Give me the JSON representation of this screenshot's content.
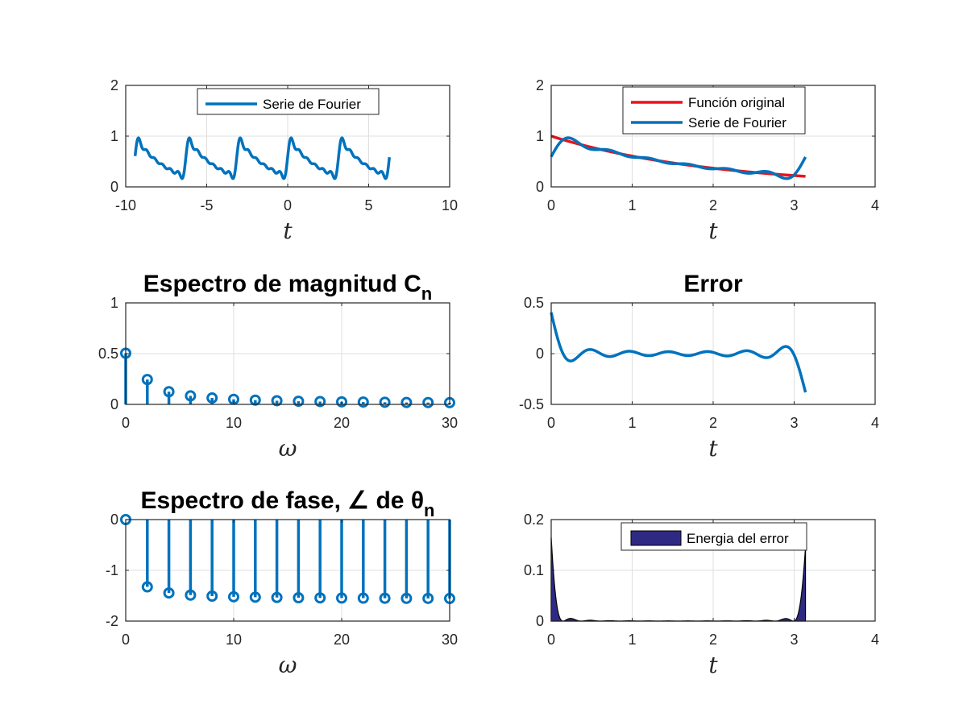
{
  "colors": {
    "blue": "#0072BD",
    "red": "#E8141C",
    "navy": "#2E2A84",
    "axis": "#262626",
    "grid": "#DFDFDF"
  },
  "chart_data": [
    {
      "id": "ax1",
      "type": "line",
      "title": "",
      "xlabel": "t",
      "ylabel": "",
      "xlim": [
        -10,
        10
      ],
      "ylim": [
        0,
        2
      ],
      "xticks": [
        -10,
        -5,
        0,
        5,
        10
      ],
      "xtick_labels": [
        "-10",
        "-5",
        "0",
        "5",
        "10"
      ],
      "yticks": [
        0,
        1,
        2
      ],
      "ytick_labels": [
        "0",
        "1",
        "2"
      ],
      "grid": true,
      "legend_position": "top-center",
      "series": [
        {
          "name": "Serie de Fourier",
          "color": "#0072BD",
          "function": "periodic exp(-t/2) on [0, pi), 6 harmonics",
          "x_range": [
            -9.42,
            6.28
          ]
        }
      ]
    },
    {
      "id": "ax2",
      "type": "line",
      "title": "",
      "xlabel": "t",
      "ylabel": "",
      "xlim": [
        0,
        4
      ],
      "ylim": [
        0,
        2
      ],
      "xticks": [
        0,
        1,
        2,
        3,
        4
      ],
      "xtick_labels": [
        "0",
        "1",
        "2",
        "3",
        "4"
      ],
      "yticks": [
        0,
        1,
        2
      ],
      "ytick_labels": [
        "0",
        "1",
        "2"
      ],
      "grid": true,
      "legend_position": "top-center",
      "series": [
        {
          "name": "Función original",
          "color": "#E8141C",
          "function": "exp(-t/2)",
          "x_range": [
            0,
            3.14
          ]
        },
        {
          "name": "Serie de Fourier",
          "color": "#0072BD",
          "function": "6-harmonic approximation",
          "x_range": [
            0,
            3.14
          ]
        }
      ]
    },
    {
      "id": "ax3",
      "type": "stem",
      "title": "Espectro de magnitud C",
      "title_sub": "n",
      "xlabel": "ω",
      "ylabel": "",
      "xlim": [
        0,
        30
      ],
      "ylim": [
        0,
        1
      ],
      "xticks": [
        0,
        10,
        20,
        30
      ],
      "xtick_labels": [
        "0",
        "10",
        "20",
        "30"
      ],
      "yticks": [
        0,
        0.5,
        1
      ],
      "ytick_labels": [
        "0",
        "0.5",
        "1"
      ],
      "grid": true,
      "x": [
        0,
        2,
        4,
        6,
        8,
        10,
        12,
        14,
        16,
        18,
        20,
        22,
        24,
        26,
        28,
        30
      ],
      "values": [
        0.504,
        0.245,
        0.125,
        0.084,
        0.063,
        0.05,
        0.042,
        0.036,
        0.031,
        0.028,
        0.025,
        0.023,
        0.021,
        0.019,
        0.018,
        0.017
      ]
    },
    {
      "id": "ax4",
      "type": "line",
      "title": "Error",
      "xlabel": "t",
      "ylabel": "",
      "xlim": [
        0,
        4
      ],
      "ylim": [
        -0.5,
        0.5
      ],
      "xticks": [
        0,
        1,
        2,
        3,
        4
      ],
      "xtick_labels": [
        "0",
        "1",
        "2",
        "3",
        "4"
      ],
      "yticks": [
        -0.5,
        0,
        0.5
      ],
      "ytick_labels": [
        "-0.5",
        "0",
        "0.5"
      ],
      "grid": true,
      "series": [
        {
          "color": "#0072BD",
          "function": "exp(-t/2) - series",
          "x_range": [
            0,
            3.14
          ]
        }
      ]
    },
    {
      "id": "ax5",
      "type": "stem",
      "title": "Espectro de fase, ∠ de θ",
      "title_sub": "n",
      "xlabel": "ω",
      "ylabel": "",
      "xlim": [
        0,
        30
      ],
      "ylim": [
        -2,
        0
      ],
      "xticks": [
        0,
        10,
        20,
        30
      ],
      "xtick_labels": [
        "0",
        "10",
        "20",
        "30"
      ],
      "yticks": [
        -2,
        -1,
        0
      ],
      "ytick_labels": [
        "-2",
        "-1",
        "0"
      ],
      "grid": true,
      "x": [
        0,
        2,
        4,
        6,
        8,
        10,
        12,
        14,
        16,
        18,
        20,
        22,
        24,
        26,
        28,
        30
      ],
      "values": [
        0,
        -1.326,
        -1.446,
        -1.488,
        -1.508,
        -1.521,
        -1.529,
        -1.535,
        -1.54,
        -1.543,
        -1.546,
        -1.548,
        -1.55,
        -1.552,
        -1.553,
        -1.554
      ]
    },
    {
      "id": "ax6",
      "type": "area",
      "title": "",
      "xlabel": "t",
      "ylabel": "",
      "xlim": [
        0,
        4
      ],
      "ylim": [
        0,
        0.2
      ],
      "xticks": [
        0,
        1,
        2,
        3,
        4
      ],
      "xtick_labels": [
        "0",
        "1",
        "2",
        "3",
        "4"
      ],
      "yticks": [
        0,
        0.1,
        0.2
      ],
      "ytick_labels": [
        "0",
        "0.1",
        "0.2"
      ],
      "grid": true,
      "legend_position": "top-center",
      "series": [
        {
          "name": "Energia del error",
          "color": "#2E2A84",
          "function": "(exp(-t/2) - series)^2",
          "x_range": [
            0,
            3.14
          ]
        }
      ]
    }
  ]
}
